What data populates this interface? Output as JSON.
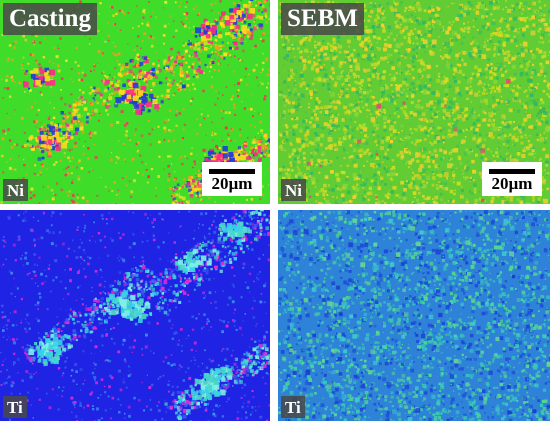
{
  "figure": {
    "panels": [
      {
        "id": "casting-ni",
        "title": "Casting",
        "element": "Ni",
        "scale_bar": "20µm",
        "palette": {
          "base": "#3fdc2a",
          "speck_a": "#ff2a5a",
          "speck_b": "#ffe020",
          "speck_c": "#ff9a20",
          "cluster_a": "#1e3cdc",
          "cluster_b": "#ff2a8a",
          "cluster_c": "#ffd820"
        }
      },
      {
        "id": "sebm-ni",
        "title": "SEBM",
        "element": "Ni",
        "scale_bar": "20µm",
        "palette": {
          "base": "#62cc34",
          "speck_a": "#c8e020",
          "speck_b": "#f0d22a",
          "speck_c": "#34b860",
          "cluster_a": "#f04070",
          "cluster_b": "#e8d030",
          "cluster_c": "#88d63a"
        }
      },
      {
        "id": "casting-ti",
        "title": "",
        "element": "Ti",
        "scale_bar": "",
        "palette": {
          "base": "#1f24e4",
          "speck_a": "#3a9af0",
          "speck_b": "#e02ad4",
          "speck_c": "#3a58ee",
          "cluster_a": "#3ad0e8",
          "cluster_b": "#7ef0e8",
          "cluster_c": "#4ad8c8"
        }
      },
      {
        "id": "sebm-ti",
        "title": "",
        "element": "Ti",
        "scale_bar": "",
        "palette": {
          "base": "#2e82d8",
          "speck_a": "#36c8b8",
          "speck_b": "#1c4ad8",
          "speck_c": "#52d890",
          "cluster_a": "#1d3ad2",
          "cluster_b": "#3ecad0",
          "cluster_c": "#6ad890"
        }
      }
    ]
  }
}
